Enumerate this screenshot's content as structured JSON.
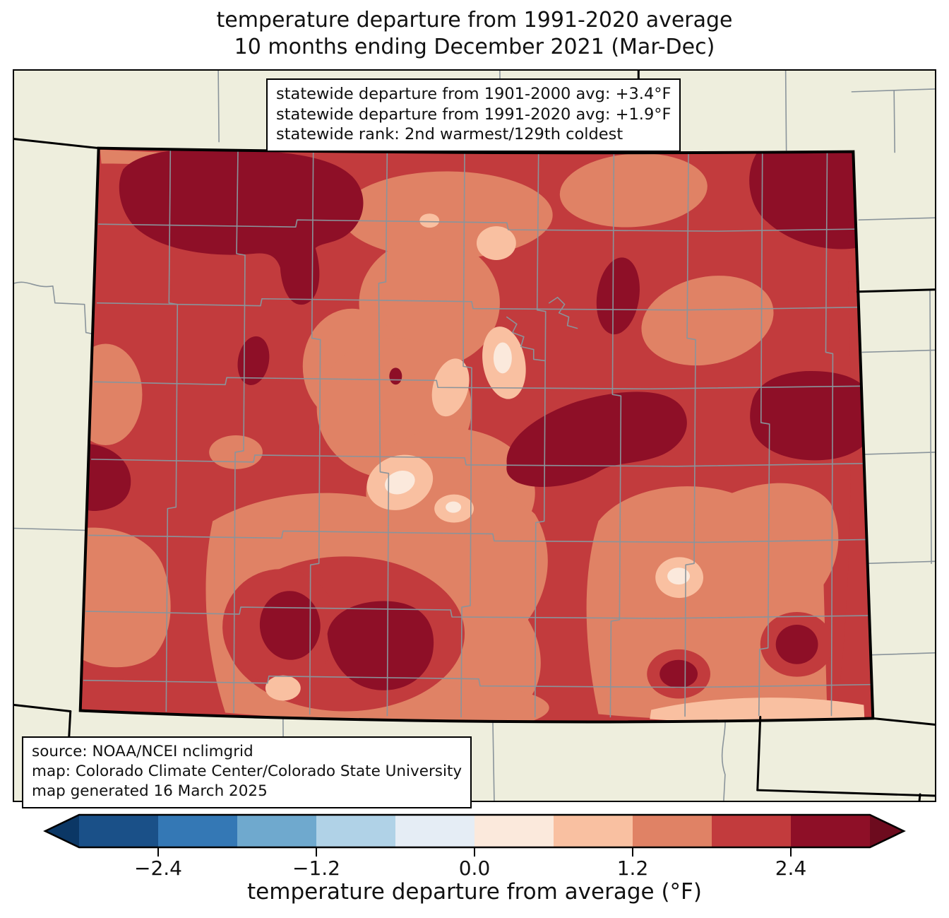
{
  "title": {
    "line1": "temperature departure from 1991-2020 average",
    "line2": "10 months ending December 2021 (Mar-Dec)"
  },
  "stats_box": {
    "lines": [
      "statewide departure from 1901-2000 avg: +3.4°F",
      "statewide departure from 1991-2020 avg: +1.9°F",
      "statewide rank: 2nd warmest/129th coldest"
    ]
  },
  "source_box": {
    "lines": [
      "source: NOAA/NCEI nclimgrid",
      "map: Colorado Climate Center/Colorado State University",
      "map generated 16 March 2025"
    ]
  },
  "colorbar": {
    "label": "temperature departure from average (°F)",
    "range_f": [
      -3,
      3
    ],
    "levels_f": [
      -3,
      -2.4,
      -1.8,
      -1.2,
      -0.6,
      0,
      0.6,
      1.2,
      1.8,
      2.4,
      3
    ],
    "ticks": [
      {
        "value": -2.4,
        "label": "−2.4"
      },
      {
        "value": -1.2,
        "label": "−1.2"
      },
      {
        "value": 0.0,
        "label": "0.0"
      },
      {
        "value": 1.2,
        "label": "1.2"
      },
      {
        "value": 2.4,
        "label": "2.4"
      }
    ],
    "segment_colors": [
      "#1a5088",
      "#3478b5",
      "#6fa9ce",
      "#b0d2e7",
      "#e5edf5",
      "#fbe9dc",
      "#f9c0a1",
      "#e08265",
      "#c23b3d",
      "#8e0f27"
    ],
    "under_arrow_color": "#0b3765",
    "over_arrow_color": "#6d0b1e"
  },
  "map": {
    "region": "Colorado",
    "background_color": "#eeeedd",
    "state_line_color": "#000000",
    "county_line_color": "#8a949b",
    "base_fill_bin_f": "1.8 to 2.4"
  }
}
